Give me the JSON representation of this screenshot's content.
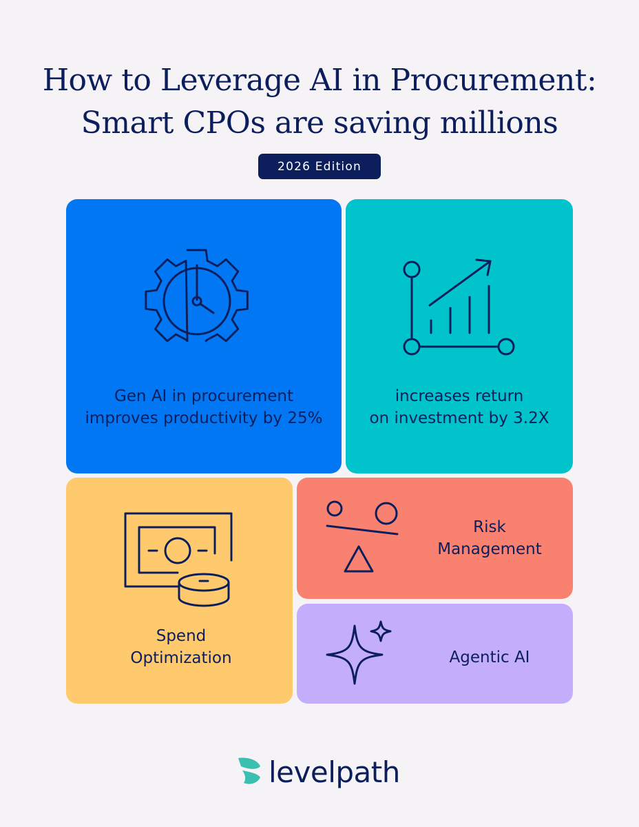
{
  "title": {
    "line1": "How to Leverage AI in Procurement:",
    "line2": "Smart CPOs are saving millions"
  },
  "edition": "2026 Edition",
  "cards": {
    "productivity": {
      "icon": "gear-clock-icon",
      "line1": "Gen AI in procurement",
      "line2": "improves productivity by 25%",
      "color": "#0277f4"
    },
    "roi": {
      "icon": "growth-chart-icon",
      "line1": "increases return",
      "line2": "on investment by 3.2X",
      "color": "#00c3cc"
    },
    "spend": {
      "icon": "money-coins-icon",
      "line1": "Spend",
      "line2": "Optimization",
      "color": "#ffc96e"
    },
    "risk": {
      "icon": "balance-shapes-icon",
      "line1": "Risk",
      "line2": "Management",
      "color": "#f98170"
    },
    "agentic": {
      "icon": "sparkle-icon",
      "label": "Agentic AI",
      "color": "#c4aefc"
    }
  },
  "logo": {
    "wordmark": "levelpath",
    "icon": "levelpath-logo-icon",
    "mark_color": "#3bbfb0"
  },
  "colors": {
    "navy": "#0c1f5c",
    "background": "#f5f3f5"
  }
}
